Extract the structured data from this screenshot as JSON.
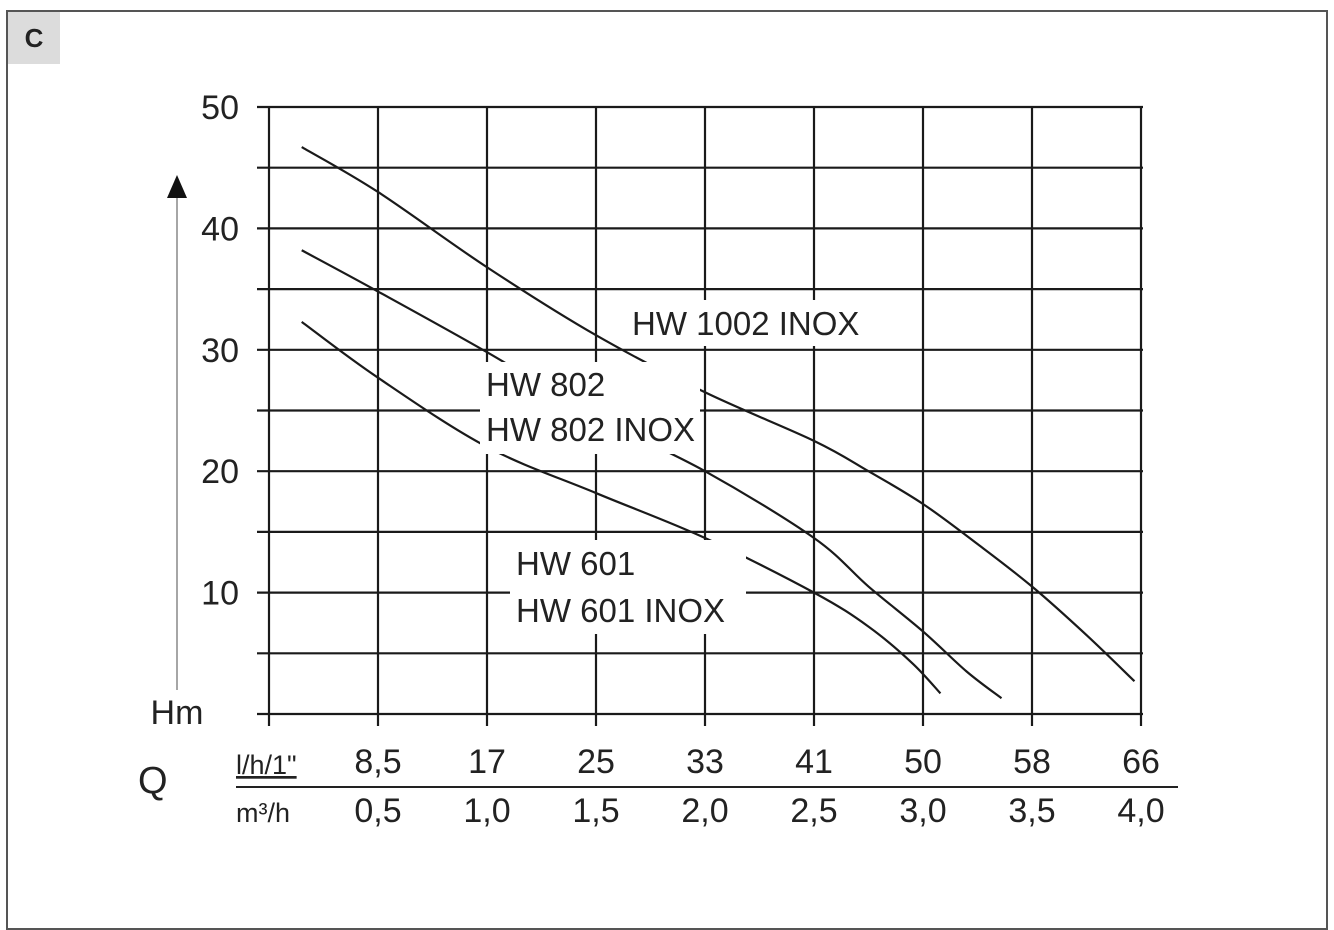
{
  "panel_label": "C",
  "chart_data": {
    "type": "line",
    "y_axis": {
      "label": "Hm",
      "min": 0,
      "max": 50,
      "ticks": [
        "10",
        "20",
        "30",
        "40",
        "50"
      ]
    },
    "x_axis": {
      "label": "Q",
      "min": 0,
      "max": 4.0,
      "scale_row1": {
        "unit": "l/h/1\"",
        "ticks": [
          "8,5",
          "17",
          "25",
          "33",
          "41",
          "50",
          "58",
          "66"
        ]
      },
      "scale_row2": {
        "unit": "m³/h",
        "ticks": [
          "0,5",
          "1,0",
          "1,5",
          "2,0",
          "2,5",
          "3,0",
          "3,5",
          "4,0"
        ]
      }
    },
    "grid": true,
    "series": [
      {
        "name": "HW 1002 INOX",
        "points": [
          [
            0.15,
            46.7
          ],
          [
            0.5,
            43.0
          ],
          [
            1.0,
            36.8
          ],
          [
            1.5,
            31.2
          ],
          [
            2.0,
            26.5
          ],
          [
            2.5,
            22.5
          ],
          [
            2.75,
            20.0
          ],
          [
            3.0,
            17.3
          ],
          [
            3.25,
            14.0
          ],
          [
            3.5,
            10.5
          ],
          [
            3.75,
            6.5
          ],
          [
            3.97,
            2.7
          ]
        ]
      },
      {
        "name": "HW 802",
        "name2": "HW 802 INOX",
        "points": [
          [
            0.15,
            38.2
          ],
          [
            0.5,
            34.8
          ],
          [
            1.0,
            29.8
          ],
          [
            1.5,
            24.5
          ],
          [
            2.0,
            20.0
          ],
          [
            2.5,
            14.5
          ],
          [
            2.75,
            10.5
          ],
          [
            3.0,
            6.8
          ],
          [
            3.2,
            3.5
          ],
          [
            3.36,
            1.3
          ]
        ]
      },
      {
        "name": "HW 601",
        "name2": "HW 601 INOX",
        "points": [
          [
            0.15,
            32.3
          ],
          [
            0.5,
            27.7
          ],
          [
            1.0,
            22.0
          ],
          [
            1.5,
            18.2
          ],
          [
            2.0,
            14.5
          ],
          [
            2.5,
            10.0
          ],
          [
            2.75,
            7.2
          ],
          [
            2.95,
            4.2
          ],
          [
            3.08,
            1.7
          ]
        ]
      }
    ]
  }
}
